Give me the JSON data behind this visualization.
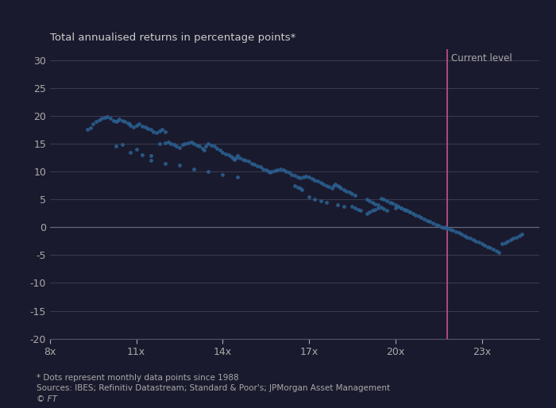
{
  "title": "Total annualised returns in percentage points*",
  "xlim": [
    8,
    25
  ],
  "ylim": [
    -20,
    32
  ],
  "xticks": [
    8,
    11,
    14,
    17,
    20,
    23
  ],
  "xtick_labels": [
    "8x",
    "11x",
    "14x",
    "17x",
    "20x",
    "23x"
  ],
  "yticks": [
    -20,
    -15,
    -10,
    -5,
    0,
    5,
    10,
    15,
    20,
    25,
    30
  ],
  "current_level_x": 21.8,
  "current_level_label": "Current level",
  "footnote1": "* Dots represent monthly data points since 1988",
  "footnote2": "Sources: IBES; Refinitiv Datastream; Standard & Poor's; JPMorgan Asset Management",
  "footnote3": "© FT",
  "dot_color": "#2a5f8f",
  "line_color": "#c8528b",
  "bg_color": "#1a1a2e",
  "grid_color": "#3a3a4e",
  "text_color": "#aaaaaa",
  "title_color": "#cccccc",
  "scatter_data": [
    [
      9.3,
      17.5
    ],
    [
      9.4,
      17.8
    ],
    [
      9.5,
      18.5
    ],
    [
      9.6,
      19.0
    ],
    [
      9.7,
      19.3
    ],
    [
      9.8,
      19.5
    ],
    [
      9.9,
      19.7
    ],
    [
      10.0,
      19.8
    ],
    [
      10.1,
      19.5
    ],
    [
      10.2,
      19.2
    ],
    [
      10.3,
      19.0
    ],
    [
      10.35,
      19.2
    ],
    [
      10.4,
      19.4
    ],
    [
      10.5,
      19.2
    ],
    [
      10.6,
      19.0
    ],
    [
      10.7,
      18.7
    ],
    [
      10.75,
      18.5
    ],
    [
      10.8,
      18.3
    ],
    [
      10.9,
      18.0
    ],
    [
      11.0,
      18.3
    ],
    [
      11.1,
      18.5
    ],
    [
      11.2,
      18.2
    ],
    [
      11.3,
      18.0
    ],
    [
      11.4,
      17.7
    ],
    [
      11.5,
      17.5
    ],
    [
      11.6,
      17.2
    ],
    [
      11.7,
      17.0
    ],
    [
      11.8,
      17.3
    ],
    [
      11.9,
      17.5
    ],
    [
      12.0,
      17.2
    ],
    [
      10.3,
      14.5
    ],
    [
      10.5,
      14.8
    ],
    [
      10.8,
      13.5
    ],
    [
      11.0,
      14.0
    ],
    [
      11.2,
      13.0
    ],
    [
      11.5,
      12.8
    ],
    [
      11.8,
      15.0
    ],
    [
      12.0,
      15.2
    ],
    [
      12.1,
      15.3
    ],
    [
      12.2,
      15.0
    ],
    [
      12.3,
      14.8
    ],
    [
      12.4,
      14.5
    ],
    [
      12.5,
      14.3
    ],
    [
      12.6,
      14.8
    ],
    [
      12.7,
      15.0
    ],
    [
      12.8,
      15.2
    ],
    [
      12.9,
      15.3
    ],
    [
      13.0,
      15.0
    ],
    [
      13.1,
      14.7
    ],
    [
      13.2,
      14.5
    ],
    [
      13.3,
      14.2
    ],
    [
      13.35,
      13.8
    ],
    [
      13.4,
      14.5
    ],
    [
      13.5,
      15.0
    ],
    [
      13.6,
      14.7
    ],
    [
      13.7,
      14.5
    ],
    [
      13.8,
      14.2
    ],
    [
      13.9,
      13.8
    ],
    [
      14.0,
      13.5
    ],
    [
      14.1,
      13.2
    ],
    [
      14.2,
      13.0
    ],
    [
      14.3,
      12.7
    ],
    [
      14.35,
      12.4
    ],
    [
      14.4,
      12.2
    ],
    [
      14.45,
      12.5
    ],
    [
      14.5,
      12.8
    ],
    [
      14.6,
      12.5
    ],
    [
      14.7,
      12.2
    ],
    [
      14.8,
      12.0
    ],
    [
      14.9,
      11.8
    ],
    [
      15.0,
      11.5
    ],
    [
      15.1,
      11.3
    ],
    [
      15.2,
      11.0
    ],
    [
      15.3,
      10.8
    ],
    [
      15.4,
      10.5
    ],
    [
      15.5,
      10.3
    ],
    [
      15.6,
      10.0
    ],
    [
      15.65,
      9.8
    ],
    [
      15.7,
      10.0
    ],
    [
      15.8,
      10.2
    ],
    [
      15.9,
      10.3
    ],
    [
      16.0,
      10.5
    ],
    [
      16.1,
      10.3
    ],
    [
      16.2,
      10.0
    ],
    [
      16.3,
      9.8
    ],
    [
      16.4,
      9.5
    ],
    [
      16.5,
      9.3
    ],
    [
      16.6,
      9.0
    ],
    [
      16.7,
      8.8
    ],
    [
      16.8,
      9.0
    ],
    [
      16.9,
      9.2
    ],
    [
      17.0,
      9.0
    ],
    [
      17.1,
      8.7
    ],
    [
      17.2,
      8.5
    ],
    [
      17.3,
      8.3
    ],
    [
      17.4,
      8.0
    ],
    [
      17.5,
      7.8
    ],
    [
      17.6,
      7.5
    ],
    [
      17.7,
      7.3
    ],
    [
      17.8,
      7.0
    ],
    [
      17.85,
      7.5
    ],
    [
      17.9,
      7.7
    ],
    [
      18.0,
      7.5
    ],
    [
      18.05,
      7.3
    ],
    [
      18.1,
      7.0
    ],
    [
      18.2,
      6.8
    ],
    [
      18.3,
      6.5
    ],
    [
      18.4,
      6.3
    ],
    [
      18.5,
      6.0
    ],
    [
      18.6,
      5.8
    ],
    [
      16.5,
      7.5
    ],
    [
      16.6,
      7.2
    ],
    [
      16.7,
      7.0
    ],
    [
      16.75,
      6.8
    ],
    [
      11.5,
      12.0
    ],
    [
      12.0,
      11.5
    ],
    [
      12.5,
      11.2
    ],
    [
      13.0,
      10.5
    ],
    [
      13.5,
      10.0
    ],
    [
      14.0,
      9.5
    ],
    [
      14.5,
      9.0
    ],
    [
      19.0,
      5.0
    ],
    [
      19.1,
      4.8
    ],
    [
      19.2,
      4.5
    ],
    [
      19.3,
      4.2
    ],
    [
      19.4,
      4.0
    ],
    [
      19.5,
      5.2
    ],
    [
      19.6,
      5.0
    ],
    [
      19.7,
      4.8
    ],
    [
      19.8,
      4.5
    ],
    [
      19.9,
      4.3
    ],
    [
      20.0,
      4.0
    ],
    [
      20.1,
      3.8
    ],
    [
      20.2,
      3.5
    ],
    [
      20.3,
      3.2
    ],
    [
      20.4,
      3.0
    ],
    [
      20.5,
      2.8
    ],
    [
      20.6,
      2.5
    ],
    [
      20.7,
      2.2
    ],
    [
      20.8,
      2.0
    ],
    [
      20.9,
      1.7
    ],
    [
      21.0,
      1.5
    ],
    [
      21.1,
      1.2
    ],
    [
      21.2,
      1.0
    ],
    [
      21.3,
      0.7
    ],
    [
      21.4,
      0.5
    ],
    [
      21.5,
      0.3
    ],
    [
      21.6,
      0.1
    ],
    [
      21.7,
      -0.1
    ],
    [
      21.75,
      0.0
    ],
    [
      21.8,
      -0.2
    ],
    [
      21.9,
      -0.4
    ],
    [
      22.0,
      -0.6
    ],
    [
      22.1,
      -0.8
    ],
    [
      22.2,
      -1.0
    ],
    [
      22.3,
      -1.2
    ],
    [
      22.4,
      -1.5
    ],
    [
      22.5,
      -1.8
    ],
    [
      22.6,
      -2.0
    ],
    [
      22.7,
      -2.2
    ],
    [
      22.8,
      -2.5
    ],
    [
      22.9,
      -2.7
    ],
    [
      23.0,
      -3.0
    ],
    [
      23.1,
      -3.2
    ],
    [
      23.2,
      -3.5
    ],
    [
      23.3,
      -3.7
    ],
    [
      23.4,
      -4.0
    ],
    [
      23.5,
      -4.3
    ],
    [
      23.6,
      -4.5
    ],
    [
      23.7,
      -3.0
    ],
    [
      23.8,
      -2.8
    ],
    [
      23.9,
      -2.5
    ],
    [
      24.0,
      -2.3
    ],
    [
      24.1,
      -2.0
    ],
    [
      24.2,
      -1.8
    ],
    [
      24.3,
      -1.5
    ],
    [
      24.4,
      -1.3
    ],
    [
      18.5,
      3.8
    ],
    [
      18.6,
      3.5
    ],
    [
      18.7,
      3.2
    ],
    [
      18.8,
      3.0
    ],
    [
      19.0,
      2.5
    ],
    [
      19.1,
      2.8
    ],
    [
      19.2,
      3.0
    ],
    [
      19.3,
      3.2
    ],
    [
      19.4,
      3.4
    ],
    [
      19.5,
      3.6
    ],
    [
      19.6,
      3.3
    ],
    [
      19.7,
      3.0
    ],
    [
      20.0,
      3.5
    ],
    [
      20.1,
      3.8
    ],
    [
      20.2,
      3.5
    ],
    [
      20.3,
      3.2
    ],
    [
      20.4,
      3.0
    ],
    [
      20.5,
      2.8
    ],
    [
      17.0,
      5.5
    ],
    [
      17.2,
      5.0
    ],
    [
      17.4,
      4.8
    ],
    [
      17.6,
      4.5
    ],
    [
      18.0,
      4.0
    ],
    [
      18.2,
      3.8
    ]
  ]
}
